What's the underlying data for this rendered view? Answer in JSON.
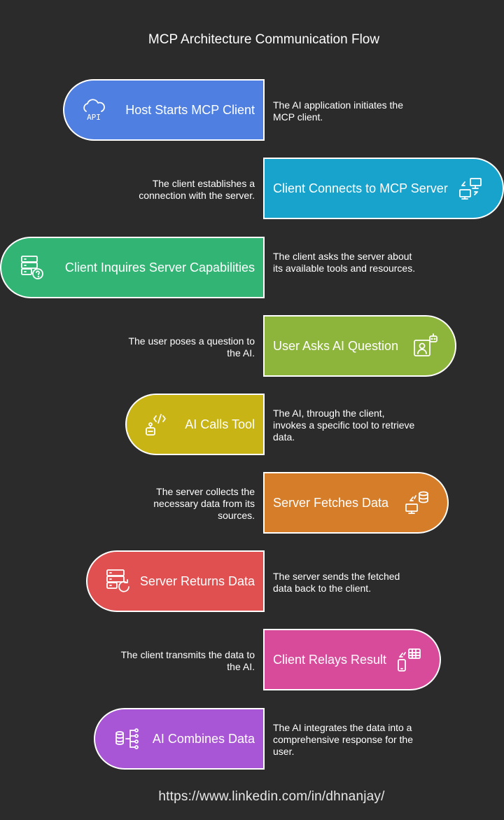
{
  "title": "MCP Architecture Communication Flow",
  "footer": "https://www.linkedin.com/in/dhnanjay/",
  "steps": [
    {
      "label": "Host Starts MCP Client",
      "desc": "The AI application initiates the MCP client.",
      "icon": "cloud-api-icon",
      "color": "#4f7fe0"
    },
    {
      "label": "Client Connects to MCP Server",
      "desc": "The client establishes a connection with the server.",
      "icon": "monitor-sync-icon",
      "color": "#17a3cc"
    },
    {
      "label": "Client Inquires Server Capabilities",
      "desc": "The client asks the server about its available tools and resources.",
      "icon": "server-question-icon",
      "color": "#32b574"
    },
    {
      "label": "User Asks AI Question",
      "desc": "The user poses a question to the AI.",
      "icon": "user-robot-icon",
      "color": "#8db53b"
    },
    {
      "label": "AI Calls Tool",
      "desc": "The AI, through the client, invokes a specific tool to retrieve data.",
      "icon": "robot-code-icon",
      "color": "#c8b414"
    },
    {
      "label": "Server Fetches Data",
      "desc": "The server collects the necessary data from its sources.",
      "icon": "database-sync-icon",
      "color": "#d67d2a"
    },
    {
      "label": "Server Returns Data",
      "desc": "The server sends the fetched data back to the client.",
      "icon": "server-refresh-icon",
      "color": "#e05050"
    },
    {
      "label": "Client Relays Result",
      "desc": "The client transmits the data to the AI.",
      "icon": "phone-table-icon",
      "color": "#d84a9a"
    },
    {
      "label": "AI Combines Data",
      "desc": "The AI integrates the data into a comprehensive response for the user.",
      "icon": "data-merge-icon",
      "color": "#a855d6"
    }
  ]
}
